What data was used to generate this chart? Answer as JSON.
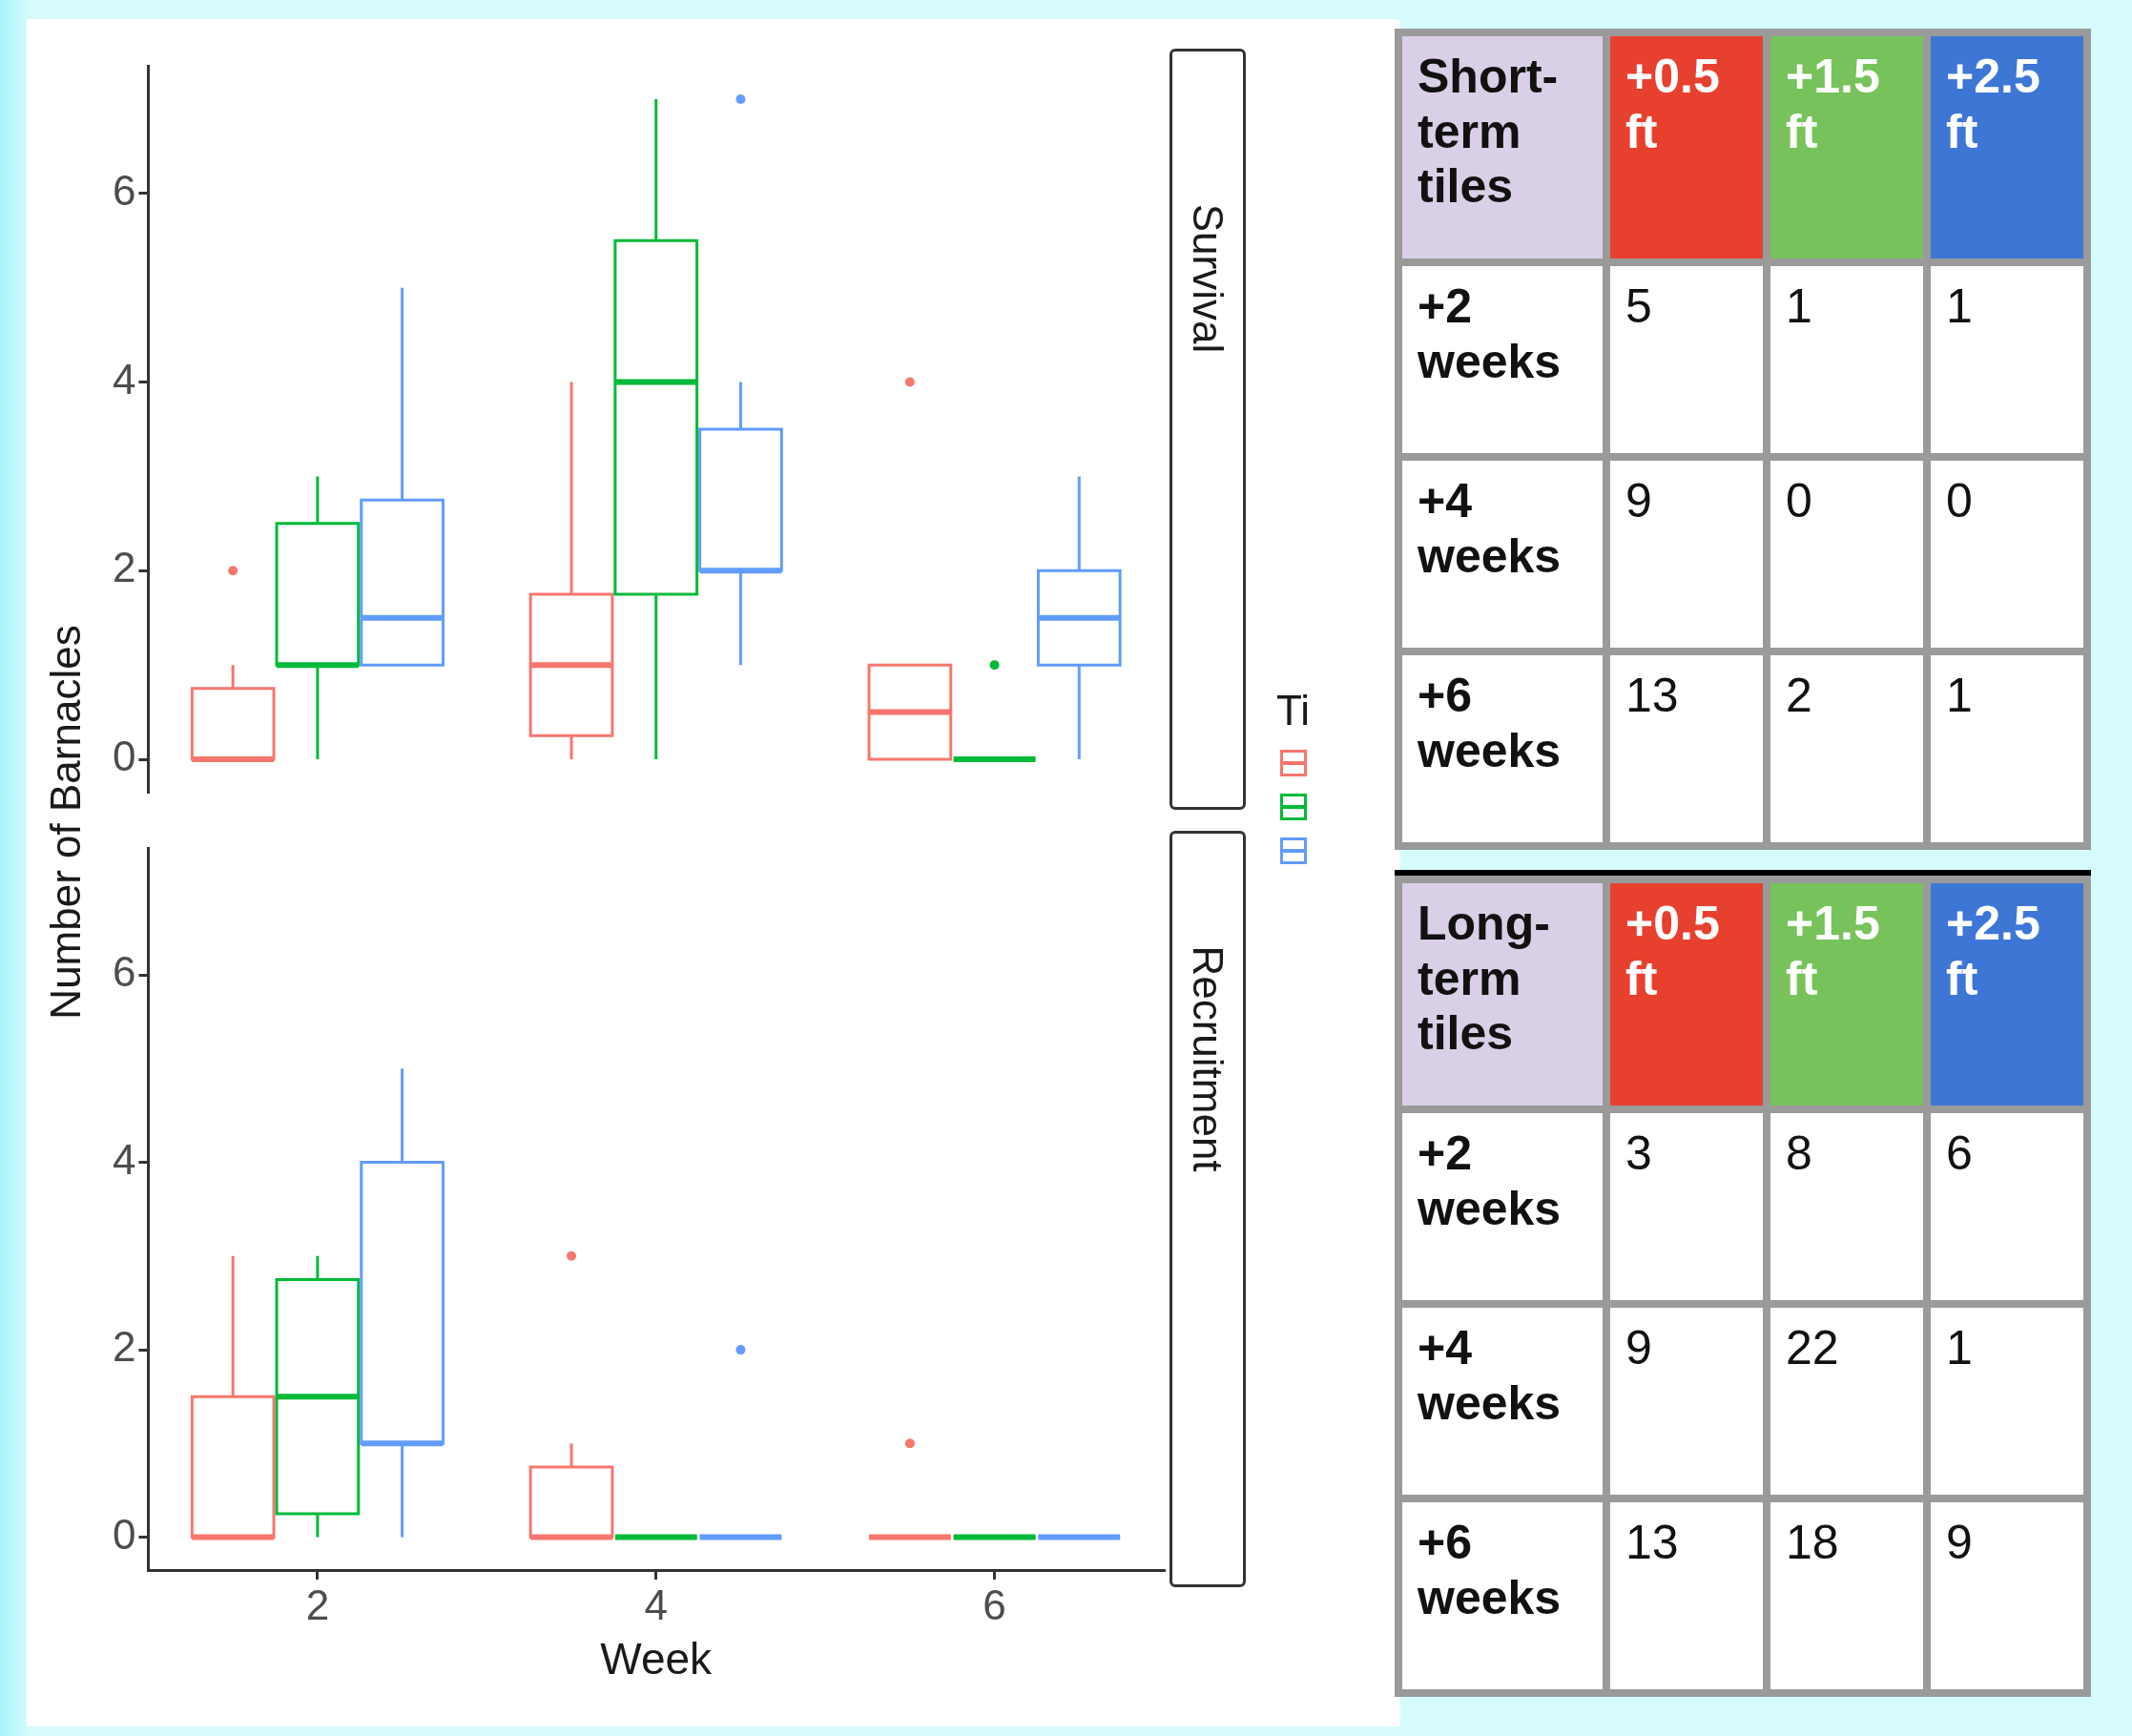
{
  "chart_data": [
    {
      "type": "box",
      "title": "Survival",
      "ylabel": "Number of Barnacles",
      "categories": [
        "2",
        "4",
        "6"
      ],
      "ylim": [
        -0.35,
        7.35
      ],
      "yticks": [
        0,
        2,
        4,
        6
      ],
      "tick_labels": "y",
      "legend_title": "Ti",
      "series": [
        {
          "color": "#f8766d",
          "boxes": [
            {
              "low": 0,
              "q1": 0,
              "median": 0,
              "q3": 0.75,
              "high": 1,
              "outliers": [
                2
              ]
            },
            {
              "low": 0,
              "q1": 0.25,
              "median": 1,
              "q3": 1.75,
              "high": 4
            },
            {
              "low": 0,
              "q1": 0,
              "median": 0.5,
              "q3": 1,
              "high": 1,
              "outliers": [
                4
              ]
            }
          ]
        },
        {
          "color": "#00ba38",
          "boxes": [
            {
              "low": 0,
              "q1": 1,
              "median": 1,
              "q3": 2.5,
              "high": 3
            },
            {
              "low": 0,
              "q1": 1.75,
              "median": 4,
              "q3": 5.5,
              "high": 7
            },
            {
              "low": 0,
              "q1": 0,
              "median": 0,
              "q3": 0,
              "high": 0,
              "outliers": [
                1
              ]
            }
          ]
        },
        {
          "color": "#619cff",
          "boxes": [
            {
              "low": 1,
              "q1": 1,
              "median": 1.5,
              "q3": 2.75,
              "high": 5
            },
            {
              "low": 1,
              "q1": 2,
              "median": 2,
              "q3": 3.5,
              "high": 4,
              "outliers": [
                7
              ]
            },
            {
              "low": 0,
              "q1": 1,
              "median": 1.5,
              "q3": 2,
              "high": 3
            }
          ]
        }
      ]
    },
    {
      "type": "box",
      "title": "Recruitment",
      "xlabel": "Week",
      "categories": [
        "2",
        "4",
        "6"
      ],
      "ylim": [
        -0.35,
        7.35
      ],
      "yticks": [
        0,
        2,
        4,
        6
      ],
      "series": [
        {
          "color": "#f8766d",
          "boxes": [
            {
              "low": 0,
              "q1": 0,
              "median": 0,
              "q3": 1.5,
              "high": 3
            },
            {
              "low": 0,
              "q1": 0,
              "median": 0,
              "q3": 0.75,
              "high": 1,
              "outliers": [
                3
              ]
            },
            {
              "low": 0,
              "q1": 0,
              "median": 0,
              "q3": 0,
              "high": 0,
              "outliers": [
                1
              ]
            }
          ]
        },
        {
          "color": "#00ba38",
          "boxes": [
            {
              "low": 0,
              "q1": 0.25,
              "median": 1.5,
              "q3": 2.75,
              "high": 3
            },
            {
              "low": 0,
              "q1": 0,
              "median": 0,
              "q3": 0,
              "high": 0
            },
            {
              "low": 0,
              "q1": 0,
              "median": 0,
              "q3": 0,
              "high": 0
            }
          ]
        },
        {
          "color": "#619cff",
          "boxes": [
            {
              "low": 0,
              "q1": 1,
              "median": 1,
              "q3": 4,
              "high": 5
            },
            {
              "low": 0,
              "q1": 0,
              "median": 0,
              "q3": 0,
              "high": 0,
              "outliers": [
                2
              ]
            },
            {
              "low": 0,
              "q1": 0,
              "median": 0,
              "q3": 0,
              "high": 0
            }
          ]
        }
      ]
    },
    {
      "type": "other",
      "annotations": [
        "Short-term tiles",
        "+0.5 ft",
        "+1.5 ft",
        "+2.5 ft",
        "+2 weeks",
        "5",
        "1",
        "1",
        "+4 weeks",
        "9",
        "0",
        "0",
        "+6 weeks",
        "13",
        "2",
        "1"
      ]
    },
    {
      "type": "other",
      "annotations": [
        "Long-term tiles",
        "+0.5 ft",
        "+1.5 ft",
        "+2.5 ft",
        "+2 weeks",
        "3",
        "8",
        "6",
        "+4 weeks",
        "9",
        "22",
        "1",
        "+6 weeks",
        "13",
        "18",
        "9"
      ]
    }
  ]
}
